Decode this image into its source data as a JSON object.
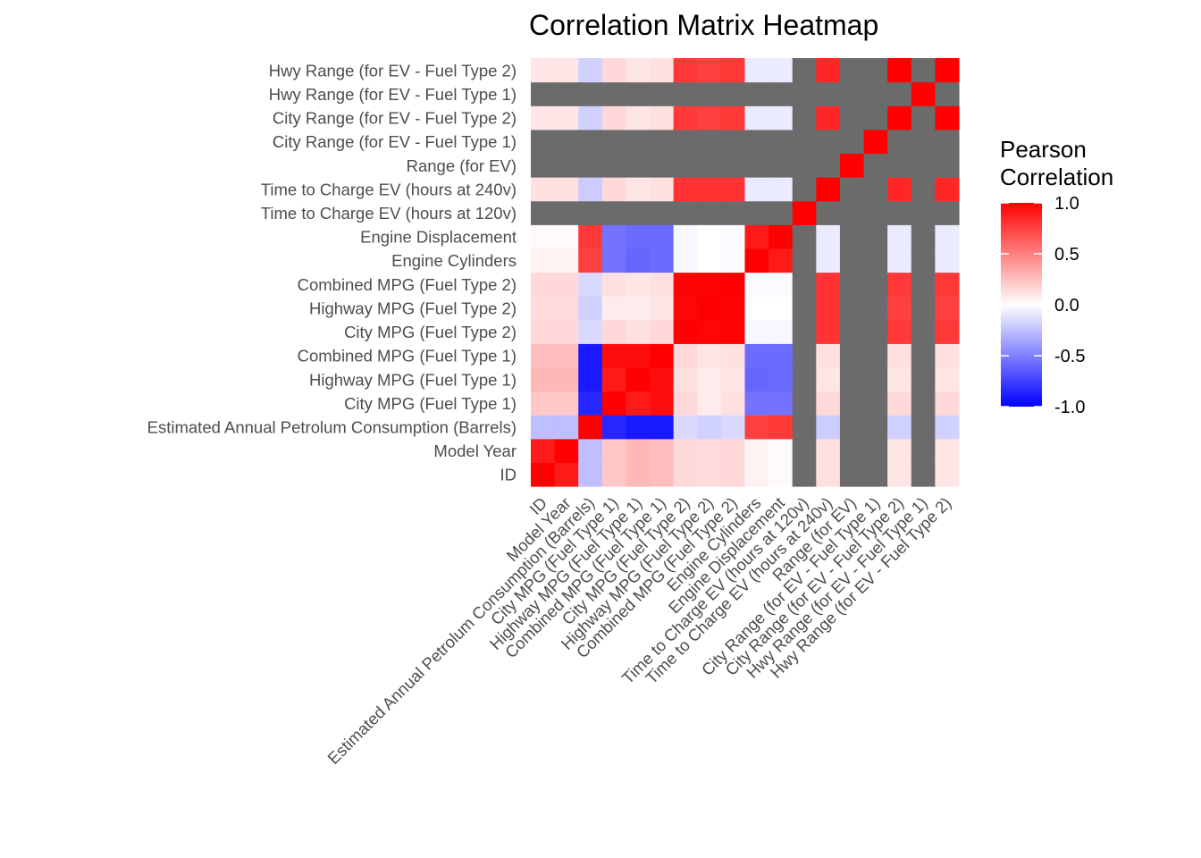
{
  "chart_data": {
    "type": "heatmap",
    "title": "Correlation Matrix Heatmap",
    "xlabel": "",
    "ylabel": "",
    "variables": [
      "ID",
      "Model Year",
      "Estimated Annual Petrolum Consumption (Barrels)",
      "City MPG (Fuel Type 1)",
      "Highway MPG (Fuel Type 1)",
      "Combined MPG (Fuel Type 1)",
      "City MPG (Fuel Type 2)",
      "Highway MPG (Fuel Type 2)",
      "Combined MPG (Fuel Type 2)",
      "Engine Cylinders",
      "Engine Displacement",
      "Time to Charge EV (hours at 120v)",
      "Time to Charge EV (hours at 240v)",
      "Range (for EV)",
      "City Range (for EV - Fuel Type 1)",
      "City Range (for EV - Fuel Type 2)",
      "Hwy Range (for EV - Fuel Type 1)",
      "Hwy Range (for EV - Fuel Type 2)"
    ],
    "matrix": [
      [
        1.0,
        0.9,
        -0.25,
        0.22,
        0.28,
        0.26,
        0.15,
        0.14,
        0.15,
        0.05,
        0.02,
        null,
        0.12,
        null,
        null,
        0.1,
        null,
        0.1
      ],
      [
        0.9,
        1.0,
        -0.25,
        0.22,
        0.28,
        0.26,
        0.15,
        0.14,
        0.15,
        0.05,
        0.02,
        null,
        0.12,
        null,
        null,
        0.1,
        null,
        0.1
      ],
      [
        -0.25,
        -0.25,
        1.0,
        -0.85,
        -0.9,
        -0.9,
        -0.15,
        -0.18,
        -0.15,
        0.75,
        0.78,
        null,
        -0.2,
        null,
        null,
        -0.18,
        null,
        -0.18
      ],
      [
        0.22,
        0.22,
        -0.85,
        1.0,
        0.9,
        0.95,
        0.15,
        0.08,
        0.12,
        -0.55,
        -0.55,
        null,
        0.15,
        null,
        null,
        0.15,
        null,
        0.15
      ],
      [
        0.28,
        0.28,
        -0.9,
        0.9,
        1.0,
        0.95,
        0.12,
        0.08,
        0.1,
        -0.6,
        -0.58,
        null,
        0.1,
        null,
        null,
        0.1,
        null,
        0.1
      ],
      [
        0.26,
        0.26,
        -0.9,
        0.95,
        0.95,
        1.0,
        0.15,
        0.1,
        0.12,
        -0.58,
        -0.58,
        null,
        0.12,
        null,
        null,
        0.12,
        null,
        0.12
      ],
      [
        0.15,
        0.15,
        -0.15,
        0.15,
        0.12,
        0.15,
        1.0,
        0.98,
        0.99,
        -0.03,
        -0.03,
        null,
        0.8,
        null,
        null,
        0.78,
        null,
        0.78
      ],
      [
        0.14,
        0.14,
        -0.18,
        0.08,
        0.08,
        0.1,
        0.98,
        1.0,
        0.99,
        0.0,
        0.0,
        null,
        0.8,
        null,
        null,
        0.75,
        null,
        0.75
      ],
      [
        0.15,
        0.15,
        -0.15,
        0.12,
        0.1,
        0.12,
        0.99,
        0.99,
        1.0,
        -0.02,
        -0.02,
        null,
        0.8,
        null,
        null,
        0.78,
        null,
        0.78
      ],
      [
        0.05,
        0.05,
        0.75,
        -0.55,
        -0.6,
        -0.58,
        -0.03,
        0.0,
        -0.02,
        1.0,
        0.9,
        null,
        -0.08,
        null,
        null,
        -0.08,
        null,
        -0.08
      ],
      [
        0.02,
        0.02,
        0.78,
        -0.55,
        -0.58,
        -0.58,
        -0.03,
        0.0,
        -0.02,
        0.9,
        1.0,
        null,
        -0.08,
        null,
        null,
        -0.08,
        null,
        -0.08
      ],
      [
        null,
        null,
        null,
        null,
        null,
        null,
        null,
        null,
        null,
        null,
        null,
        1.0,
        null,
        null,
        null,
        null,
        null,
        null
      ],
      [
        0.12,
        0.12,
        -0.2,
        0.15,
        0.1,
        0.12,
        0.8,
        0.8,
        0.8,
        -0.08,
        -0.08,
        null,
        1.0,
        null,
        null,
        0.85,
        null,
        0.85
      ],
      [
        null,
        null,
        null,
        null,
        null,
        null,
        null,
        null,
        null,
        null,
        null,
        null,
        null,
        1.0,
        null,
        null,
        null,
        null
      ],
      [
        null,
        null,
        null,
        null,
        null,
        null,
        null,
        null,
        null,
        null,
        null,
        null,
        null,
        null,
        1.0,
        null,
        null,
        null
      ],
      [
        0.1,
        0.1,
        -0.18,
        0.15,
        0.1,
        0.12,
        0.78,
        0.75,
        0.78,
        -0.08,
        -0.08,
        null,
        0.85,
        null,
        null,
        1.0,
        null,
        1.0
      ],
      [
        null,
        null,
        null,
        null,
        null,
        null,
        null,
        null,
        null,
        null,
        null,
        null,
        null,
        null,
        null,
        null,
        1.0,
        null
      ],
      [
        0.1,
        0.1,
        -0.18,
        0.15,
        0.1,
        0.12,
        0.78,
        0.75,
        0.78,
        -0.08,
        -0.08,
        null,
        0.85,
        null,
        null,
        1.0,
        null,
        1.0
      ]
    ],
    "na_color": "#6b6b6b",
    "color_scale": {
      "low": "#0000ff",
      "mid": "#ffffff",
      "high": "#ff0000",
      "limits": [
        -1,
        1
      ]
    },
    "legend": {
      "title": "Pearson Correlation",
      "title_lines": [
        "Pearson",
        "Correlation"
      ],
      "ticks": [
        1.0,
        0.5,
        0.0,
        -0.5,
        -1.0
      ],
      "tick_labels": [
        "1.0",
        "0.5",
        "0.0",
        "-0.5",
        "-1.0"
      ],
      "placement": "right"
    },
    "grid": false
  }
}
